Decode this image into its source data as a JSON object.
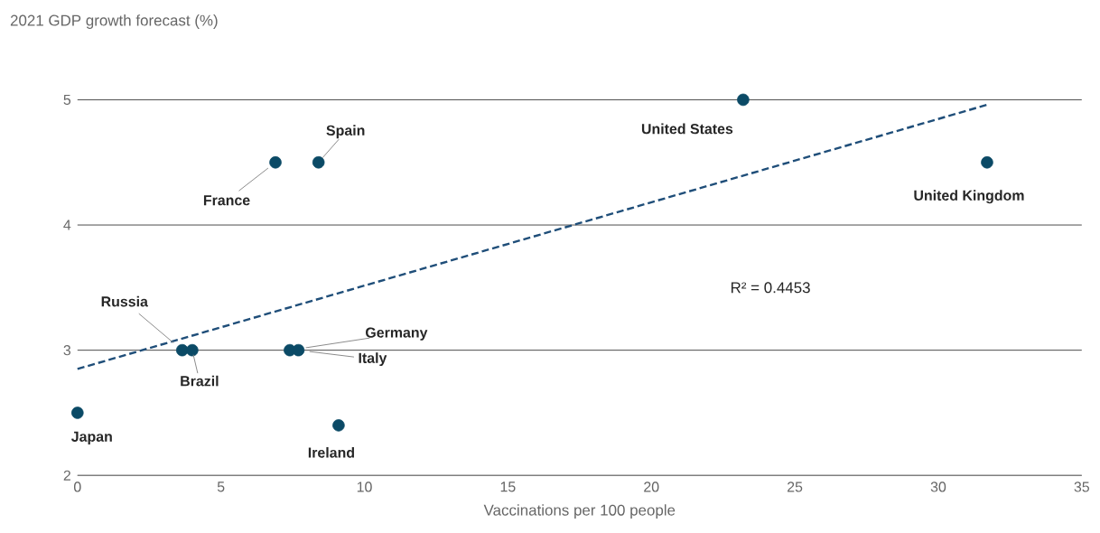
{
  "chart_data": {
    "type": "scatter",
    "ylabel": "2021 GDP growth forecast (%)",
    "xlabel": "Vaccinations per 100 people",
    "xlim": [
      0,
      35
    ],
    "xticks": [
      0,
      5,
      10,
      15,
      20,
      25,
      30,
      35
    ],
    "ylim": [
      2,
      5
    ],
    "yticks": [
      2,
      3,
      4,
      5
    ],
    "grid": "y",
    "series": [
      {
        "type": "scatter",
        "marker": "circle",
        "color": "#0b4a66",
        "x": [
          23.2,
          31.7,
          6.9,
          8.4,
          3.65,
          4.0,
          7.4,
          7.7,
          0,
          9.1
        ],
        "values": [
          5.0,
          4.5,
          4.5,
          4.5,
          3.0,
          3.0,
          3.0,
          3.0,
          2.5,
          2.4
        ]
      },
      {
        "type": "line",
        "color": "#1f4e79",
        "line_style": "dashed",
        "x": [
          0,
          31.7
        ],
        "values": [
          2.85,
          4.96
        ]
      }
    ],
    "annotations": [
      {
        "text": "United States",
        "x": 23.2,
        "y": 5.0
      },
      {
        "text": "United Kingdom",
        "x": 31.7,
        "y": 4.5
      },
      {
        "text": "France",
        "x": 6.9,
        "y": 4.5
      },
      {
        "text": "Spain",
        "x": 8.4,
        "y": 4.5
      },
      {
        "text": "Russia",
        "x": 3.65,
        "y": 3.0
      },
      {
        "text": "Brazil",
        "x": 4.0,
        "y": 3.0
      },
      {
        "text": "Germany",
        "x": 7.4,
        "y": 3.0
      },
      {
        "text": "Italy",
        "x": 7.7,
        "y": 3.0
      },
      {
        "text": "Japan",
        "x": 0,
        "y": 2.5
      },
      {
        "text": "Ireland",
        "x": 9.1,
        "y": 2.4
      },
      "R² = 0.4453"
    ]
  }
}
